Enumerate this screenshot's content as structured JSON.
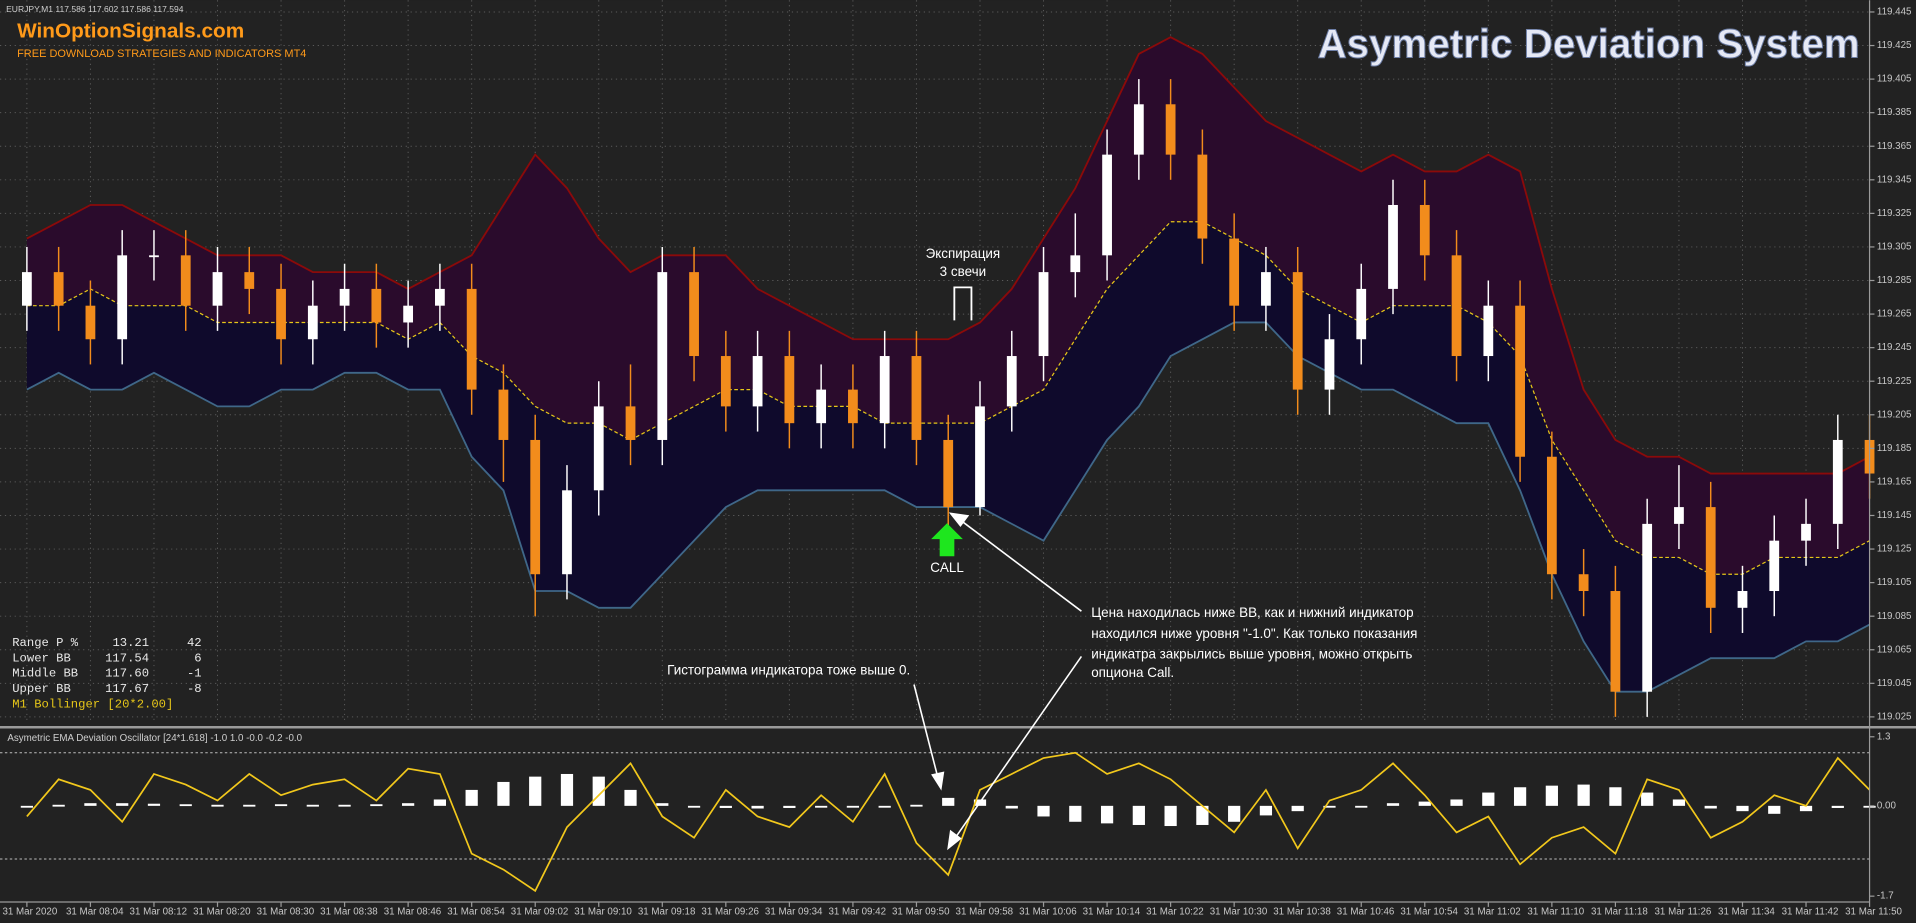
{
  "header": {
    "symbol": "EURJPY,M1  117.586 117.602 117.586 117.594",
    "brand": "WinOptionSignals.com",
    "tagline": "FREE DOWNLOAD STRATEGIES AND INDICATORS MT4",
    "title": "Asymetric Deviation System"
  },
  "info_panel": {
    "rows": [
      [
        "Range P %",
        "13.21",
        "42"
      ],
      [
        "Lower BB",
        "117.54",
        "6"
      ],
      [
        "Middle BB",
        "117.60",
        "-1"
      ],
      [
        "Upper BB",
        "117.67",
        "-8"
      ]
    ],
    "footer": "M1 Bollinger [20*2.00]"
  },
  "annotations": {
    "expiration": [
      "Экспирация",
      "3 свечи"
    ],
    "signal": "CALL",
    "explanation": [
      "Цена находилась ниже ВВ, как и нижний индикатор",
      "находился ниже уровня \"-1.0\". Как только показания",
      "индикатра закрылись выше уровня, можно открыть",
      "опциона Call."
    ],
    "histogram_note": "Гистограмма индикатора тоже выше 0."
  },
  "chart_data": [
    {
      "type": "candlestick",
      "categories": [
        "31 Mar 2020",
        null,
        "31 Mar 08:04",
        null,
        "31 Mar 08:12",
        null,
        "31 Mar 08:20",
        null,
        "31 Mar 08:30",
        null,
        "31 Mar 08:38",
        null,
        "31 Mar 08:46",
        null,
        "31 Mar 08:54",
        null,
        "31 Mar 09:02",
        null,
        "31 Mar 09:10",
        null,
        "31 Mar 09:18",
        null,
        "31 Mar 09:26",
        null,
        "31 Mar 09:34",
        null,
        "31 Mar 09:42",
        null,
        "31 Mar 09:50",
        null,
        "31 Mar 09:58",
        null,
        "31 Mar 10:06",
        null,
        "31 Mar 10:14",
        null,
        "31 Mar 10:22",
        null,
        "31 Mar 10:30",
        null,
        "31 Mar 10:38",
        null,
        "31 Mar 10:46",
        null,
        "31 Mar 10:54",
        null,
        "31 Mar 11:02",
        null,
        "31 Mar 11:10",
        null,
        "31 Mar 11:18",
        null,
        "31 Mar 11:26",
        null,
        "31 Mar 11:34",
        null,
        "31 Mar 11:42",
        null,
        "31 Mar 11:50"
      ],
      "open": [
        119.27,
        119.29,
        119.27,
        119.25,
        119.3,
        119.3,
        119.27,
        119.29,
        119.28,
        119.25,
        119.27,
        119.28,
        119.26,
        119.27,
        119.28,
        119.22,
        119.19,
        119.11,
        119.16,
        119.21,
        119.19,
        119.29,
        119.24,
        119.21,
        119.24,
        119.2,
        119.22,
        119.2,
        119.24,
        119.19,
        119.15,
        119.21,
        119.24,
        119.29,
        119.3,
        119.36,
        119.39,
        119.36,
        119.31,
        119.27,
        119.29,
        119.22,
        119.25,
        119.28,
        119.33,
        119.3,
        119.24,
        119.27,
        119.18,
        119.11,
        119.1,
        119.04,
        119.14,
        119.15,
        119.09,
        119.1,
        119.13,
        119.14,
        119.19
      ],
      "high": [
        119.305,
        119.305,
        119.285,
        119.315,
        119.315,
        119.315,
        119.305,
        119.305,
        119.295,
        119.285,
        119.295,
        119.295,
        119.285,
        119.295,
        119.295,
        119.235,
        119.205,
        119.175,
        119.225,
        119.235,
        119.305,
        119.305,
        119.255,
        119.255,
        119.255,
        119.235,
        119.235,
        119.255,
        119.255,
        119.205,
        119.225,
        119.255,
        119.305,
        119.325,
        119.375,
        119.405,
        119.405,
        119.375,
        119.325,
        119.305,
        119.305,
        119.265,
        119.295,
        119.345,
        119.345,
        119.315,
        119.285,
        119.285,
        119.195,
        119.125,
        119.115,
        119.155,
        119.175,
        119.165,
        119.115,
        119.145,
        119.155,
        119.205,
        119.205
      ],
      "low": [
        119.255,
        119.255,
        119.235,
        119.235,
        119.285,
        119.255,
        119.255,
        119.265,
        119.235,
        119.235,
        119.255,
        119.245,
        119.245,
        119.255,
        119.205,
        119.165,
        119.085,
        119.095,
        119.145,
        119.175,
        119.175,
        119.225,
        119.195,
        119.195,
        119.185,
        119.185,
        119.185,
        119.185,
        119.175,
        119.135,
        119.145,
        119.195,
        119.225,
        119.275,
        119.285,
        119.345,
        119.345,
        119.295,
        119.255,
        119.255,
        119.205,
        119.205,
        119.235,
        119.265,
        119.285,
        119.225,
        119.225,
        119.165,
        119.095,
        119.085,
        119.025,
        119.025,
        119.125,
        119.075,
        119.075,
        119.085,
        119.115,
        119.125,
        119.155
      ],
      "close": [
        119.29,
        119.27,
        119.25,
        119.3,
        119.3,
        119.27,
        119.29,
        119.28,
        119.25,
        119.27,
        119.28,
        119.26,
        119.27,
        119.28,
        119.22,
        119.19,
        119.11,
        119.16,
        119.21,
        119.19,
        119.29,
        119.24,
        119.21,
        119.24,
        119.2,
        119.22,
        119.2,
        119.24,
        119.19,
        119.15,
        119.21,
        119.24,
        119.29,
        119.3,
        119.36,
        119.39,
        119.36,
        119.31,
        119.27,
        119.29,
        119.22,
        119.25,
        119.28,
        119.33,
        119.3,
        119.24,
        119.27,
        119.18,
        119.11,
        119.1,
        119.04,
        119.14,
        119.15,
        119.09,
        119.1,
        119.13,
        119.14,
        119.19,
        119.17
      ],
      "bands": {
        "upper": [
          119.31,
          119.32,
          119.33,
          119.33,
          119.32,
          119.31,
          119.3,
          119.3,
          119.3,
          119.29,
          119.29,
          119.29,
          119.28,
          119.29,
          119.3,
          119.33,
          119.36,
          119.34,
          119.31,
          119.29,
          119.3,
          119.3,
          119.3,
          119.28,
          119.27,
          119.26,
          119.25,
          119.25,
          119.25,
          119.25,
          119.26,
          119.28,
          119.31,
          119.34,
          119.38,
          119.42,
          119.43,
          119.42,
          119.4,
          119.38,
          119.37,
          119.36,
          119.35,
          119.36,
          119.35,
          119.35,
          119.36,
          119.35,
          119.28,
          119.22,
          119.19,
          119.18,
          119.18,
          119.17,
          119.17,
          119.17,
          119.17,
          119.17,
          119.18
        ],
        "middle": [
          119.27,
          119.27,
          119.28,
          119.27,
          119.27,
          119.27,
          119.26,
          119.26,
          119.26,
          119.26,
          119.26,
          119.26,
          119.25,
          119.26,
          119.24,
          119.23,
          119.21,
          119.2,
          119.2,
          119.19,
          119.2,
          119.21,
          119.22,
          119.22,
          119.21,
          119.21,
          119.21,
          119.2,
          119.2,
          119.2,
          119.2,
          119.21,
          119.22,
          119.25,
          119.28,
          119.3,
          119.32,
          119.32,
          119.31,
          119.3,
          119.28,
          119.27,
          119.26,
          119.27,
          119.27,
          119.27,
          119.26,
          119.24,
          119.19,
          119.16,
          119.13,
          119.12,
          119.12,
          119.11,
          119.11,
          119.12,
          119.12,
          119.12,
          119.13
        ],
        "lower": [
          119.22,
          119.23,
          119.22,
          119.22,
          119.23,
          119.22,
          119.21,
          119.21,
          119.22,
          119.22,
          119.23,
          119.23,
          119.22,
          119.22,
          119.18,
          119.16,
          119.1,
          119.1,
          119.09,
          119.09,
          119.11,
          119.13,
          119.15,
          119.16,
          119.16,
          119.16,
          119.16,
          119.16,
          119.15,
          119.15,
          119.15,
          119.14,
          119.13,
          119.16,
          119.19,
          119.21,
          119.24,
          119.25,
          119.26,
          119.26,
          119.24,
          119.23,
          119.22,
          119.22,
          119.21,
          119.2,
          119.2,
          119.16,
          119.11,
          119.07,
          119.04,
          119.04,
          119.05,
          119.06,
          119.06,
          119.06,
          119.07,
          119.07,
          119.08
        ]
      },
      "ylim": [
        119.021,
        119.452
      ],
      "yticks": [
        119.025,
        119.045,
        119.065,
        119.085,
        119.105,
        119.125,
        119.145,
        119.165,
        119.185,
        119.205,
        119.225,
        119.245,
        119.265,
        119.285,
        119.305,
        119.325,
        119.345,
        119.365,
        119.385,
        119.405,
        119.425,
        119.445
      ],
      "grid": true,
      "up_color": "#ffffff",
      "down_color": "#f28c1c",
      "band_colors": {
        "upper": "#8b0a0a",
        "middle": "#e6c619",
        "lower": "#3f6788",
        "upper_fill": "#2a0b2c",
        "lower_fill": "#0f0a2c"
      }
    },
    {
      "type": "oscillator",
      "title": "Asymetric EMA Deviation Oscillator [24*1.618] -1.0 1.0 -0.0 -0.2 -0.0",
      "values": [
        -0.2,
        0.5,
        0.3,
        -0.3,
        0.6,
        0.4,
        0.1,
        0.6,
        0.2,
        0.4,
        0.5,
        0.1,
        0.7,
        0.6,
        -0.9,
        -1.2,
        -1.6,
        -0.4,
        0.2,
        0.8,
        -0.2,
        -0.6,
        0.3,
        -0.2,
        -0.4,
        0.2,
        -0.3,
        0.6,
        -0.7,
        -1.3,
        0.3,
        0.6,
        0.9,
        1.0,
        0.6,
        0.8,
        0.5,
        0.0,
        -0.5,
        0.3,
        -0.8,
        0.1,
        0.3,
        0.8,
        0.2,
        -0.5,
        -0.2,
        -1.1,
        -0.6,
        -0.4,
        -0.9,
        0.5,
        0.3,
        -0.6,
        -0.3,
        0.2,
        0.0,
        0.9,
        0.3
      ],
      "histogram": [
        0.0,
        0.02,
        0.05,
        0.05,
        0.04,
        0.03,
        0.02,
        0.02,
        0.03,
        0.02,
        0.02,
        0.03,
        0.05,
        0.12,
        0.3,
        0.45,
        0.55,
        0.6,
        0.55,
        0.3,
        0.05,
        -0.02,
        -0.04,
        -0.05,
        -0.04,
        -0.03,
        -0.02,
        -0.02,
        0.02,
        0.15,
        0.12,
        -0.05,
        -0.2,
        -0.3,
        -0.33,
        -0.36,
        -0.38,
        -0.36,
        -0.3,
        -0.18,
        -0.1,
        -0.03,
        0.0,
        0.05,
        0.08,
        0.12,
        0.25,
        0.35,
        0.38,
        0.4,
        0.35,
        0.25,
        0.12,
        -0.05,
        -0.1,
        -0.15,
        -0.1,
        -0.04,
        -0.02
      ],
      "levels": [
        1.0,
        -1.0
      ],
      "ylim": [
        -1.81,
        1.41
      ],
      "yticks": [
        1.3,
        {
          "value": 0,
          "label": "0.00"
        },
        -1.7
      ],
      "line_color": "#f2c81c",
      "bar_color": "#ffffff"
    }
  ]
}
